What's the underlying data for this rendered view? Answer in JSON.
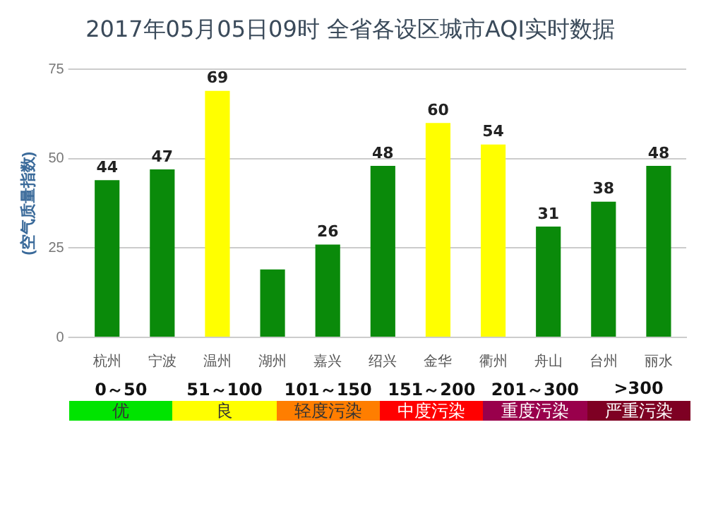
{
  "chart_data": {
    "type": "bar",
    "title": "2017年05月05日09时 全省各设区城市AQI实时数据",
    "ylabel": "(空气质量指数)",
    "categories": [
      "杭州",
      "宁波",
      "温州",
      "湖州",
      "嘉兴",
      "绍兴",
      "金华",
      "衢州",
      "舟山",
      "台州",
      "丽水"
    ],
    "values": [
      44,
      47,
      69,
      19,
      26,
      48,
      60,
      54,
      31,
      38,
      48
    ],
    "value_labels": [
      "44",
      "47",
      "69",
      null,
      "26",
      "48",
      "60",
      "54",
      "31",
      "38",
      "48"
    ],
    "colors": [
      "#0a8a0a",
      "#0a8a0a",
      "#ffff00",
      "#0a8a0a",
      "#0a8a0a",
      "#0a8a0a",
      "#ffff00",
      "#ffff00",
      "#0a8a0a",
      "#0a8a0a",
      "#0a8a0a"
    ],
    "ylim": [
      0,
      75
    ],
    "yticks": [
      0,
      25,
      50,
      75
    ],
    "grid": "y",
    "annotations": [
      "0～50",
      "51～100",
      "101～150",
      "151～200",
      "201～300",
      ">300",
      "优",
      "良",
      "轻度污染",
      "中度污染",
      "重度污染",
      "严重污染"
    ]
  }
}
